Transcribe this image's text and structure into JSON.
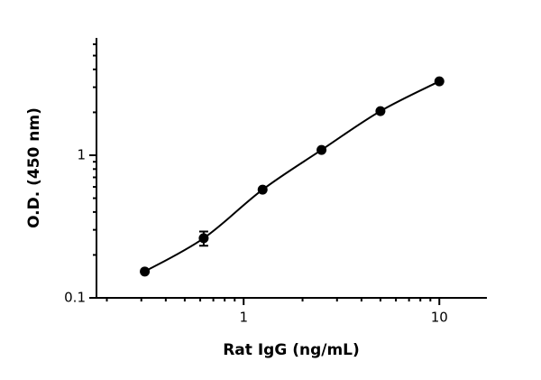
{
  "chart_data": {
    "type": "scatter",
    "x_label": "Rat IgG (ng/mL)",
    "y_label": "O.D. (450 nm)",
    "x_log": true,
    "y_log": true,
    "xlim": [
      0.177,
      17.5
    ],
    "ylim": [
      0.1,
      6.65
    ],
    "xticks": [
      1,
      10
    ],
    "yticks": [
      0.1,
      1
    ],
    "x_minor_ticks": [
      0.2,
      0.3,
      0.4,
      0.5,
      0.6,
      0.7,
      0.8,
      0.9,
      2,
      3,
      4,
      5,
      6,
      7,
      8,
      9
    ],
    "y_minor_ticks": [
      0.2,
      0.3,
      0.4,
      0.5,
      0.6,
      0.7,
      0.8,
      0.9,
      2,
      3,
      4,
      5,
      6
    ],
    "x": [
      0.3125,
      0.625,
      1.25,
      2.5,
      5,
      10
    ],
    "series": [
      {
        "color": "#000000",
        "values": [
          0.153,
          0.262,
          0.574,
          1.09,
          2.04,
          3.3
        ],
        "errors": [
          null,
          0.03,
          null,
          null,
          null,
          null
        ]
      }
    ],
    "fit_line": true
  }
}
